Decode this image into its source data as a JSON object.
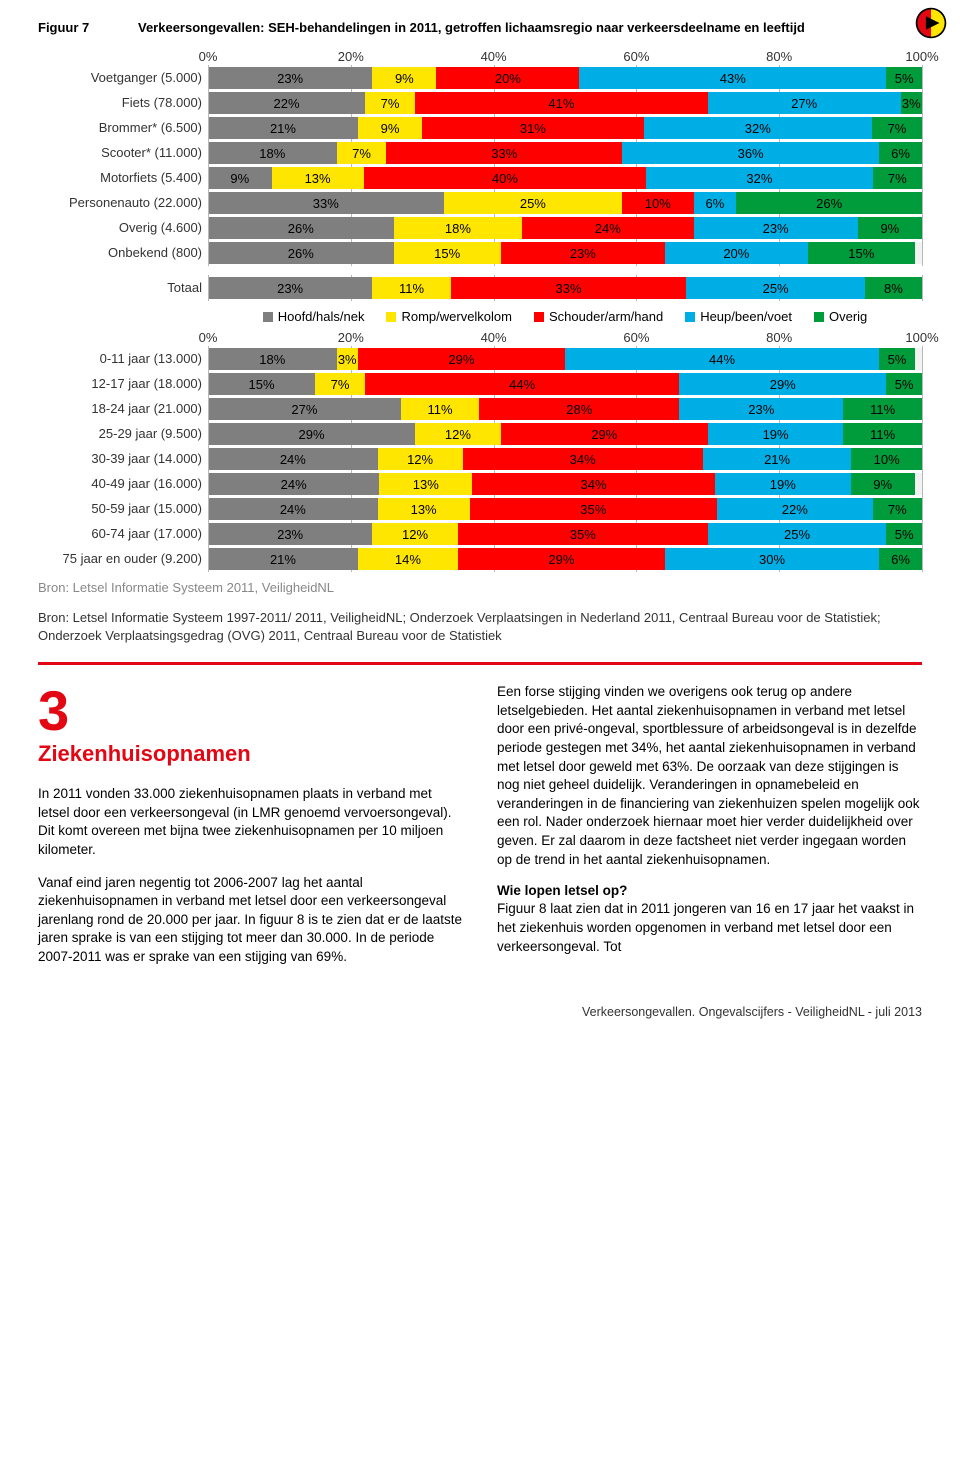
{
  "logo": {
    "outer": "#000000",
    "left_half": "#e30613",
    "right_half": "#ffe600"
  },
  "figure": {
    "label": "Figuur 7",
    "title": "Verkeersongevallen: SEH-behandelingen in 2011, getroffen lichaamsregio naar verkeersdeelname en leeftijd"
  },
  "colors": {
    "hoofd": "#7f7f7f",
    "romp": "#ffe600",
    "schouder": "#ff0000",
    "heup": "#00aee6",
    "overig": "#009b3a",
    "bgbar": "#f2f2f2",
    "grid": "#b8b8b8"
  },
  "legend": [
    {
      "label": "Hoofd/hals/nek",
      "color": "#7f7f7f"
    },
    {
      "label": "Romp/wervelkolom",
      "color": "#ffe600"
    },
    {
      "label": "Schouder/arm/hand",
      "color": "#ff0000"
    },
    {
      "label": "Heup/been/voet",
      "color": "#00aee6"
    },
    {
      "label": "Overig",
      "color": "#009b3a"
    }
  ],
  "axis": {
    "ticks": [
      "0%",
      "20%",
      "40%",
      "60%",
      "80%",
      "100%"
    ],
    "positions": [
      0,
      20,
      40,
      60,
      80,
      100
    ]
  },
  "chart1": [
    {
      "label": "Voetganger (5.000)",
      "segs": [
        23,
        9,
        20,
        43,
        5
      ]
    },
    {
      "label": "Fiets (78.000)",
      "segs": [
        22,
        7,
        41,
        27,
        3
      ]
    },
    {
      "label": "Brommer* (6.500)",
      "segs": [
        21,
        9,
        31,
        32,
        7
      ]
    },
    {
      "label": "Scooter* (11.000)",
      "segs": [
        18,
        7,
        33,
        36,
        6
      ]
    },
    {
      "label": "Motorfiets (5.400)",
      "segs": [
        9,
        13,
        40,
        32,
        7
      ]
    },
    {
      "label": "Personenauto (22.000)",
      "segs": [
        33,
        25,
        10,
        6,
        26
      ]
    },
    {
      "label": "Overig (4.600)",
      "segs": [
        26,
        18,
        24,
        23,
        9
      ]
    },
    {
      "label": "Onbekend (800)",
      "segs": [
        26,
        15,
        23,
        20,
        15
      ]
    }
  ],
  "totaal": {
    "label": "Totaal",
    "segs": [
      23,
      11,
      33,
      25,
      8
    ]
  },
  "chart2": [
    {
      "label": "0-11 jaar (13.000)",
      "segs": [
        18,
        3,
        29,
        44,
        5
      ]
    },
    {
      "label": "12-17 jaar (18.000)",
      "segs": [
        15,
        7,
        44,
        29,
        5
      ]
    },
    {
      "label": "18-24 jaar (21.000)",
      "segs": [
        27,
        11,
        28,
        23,
        11
      ]
    },
    {
      "label": "25-29 jaar (9.500)",
      "segs": [
        29,
        12,
        29,
        19,
        11
      ]
    },
    {
      "label": "30-39 jaar (14.000)",
      "segs": [
        24,
        12,
        34,
        21,
        10
      ]
    },
    {
      "label": "40-49 jaar (16.000)",
      "segs": [
        24,
        13,
        34,
        19,
        9
      ]
    },
    {
      "label": "50-59 jaar (15.000)",
      "segs": [
        24,
        13,
        35,
        22,
        7
      ]
    },
    {
      "label": "60-74 jaar (17.000)",
      "segs": [
        23,
        12,
        35,
        25,
        5
      ]
    },
    {
      "label": "75 jaar en ouder (9.200)",
      "segs": [
        21,
        14,
        29,
        30,
        6
      ]
    }
  ],
  "source_note": "Bron: Letsel Informatie Systeem 2011, VeiligheidNL",
  "source_para": "Bron: Letsel Informatie Systeem 1997-2011/ 2011, VeiligheidNL; Onderzoek Verplaatsingen in Nederland 2011, Centraal Bureau voor de Statistiek; Onderzoek Verplaatsingsgedrag (OVG) 2011, Centraal Bureau voor de Statistiek",
  "section": {
    "num": "3",
    "heading": "Ziekenhuisopnamen",
    "left_p1": "In 2011 vonden 33.000 ziekenhuisopnamen plaats in verband met letsel door een verkeersongeval (in LMR genoemd vervoersongeval). Dit komt overeen met bijna twee ziekenhuisopnamen per 10 miljoen kilometer.",
    "left_p2": "Vanaf eind jaren negentig tot 2006-2007 lag het aantal ziekenhuisopnamen in verband met letsel door een verkeersongeval jarenlang rond de 20.000 per jaar. In figuur 8 is te zien dat er de laatste jaren sprake is van een stijging tot meer dan 30.000. In de periode 2007-2011 was er sprake van een stijging van 69%.",
    "right_p1": "Een forse stijging vinden we overigens ook terug op andere letselgebieden. Het aantal ziekenhuisopnamen in verband met letsel door een privé-ongeval, sportblessure of arbeidsongeval is in dezelfde periode gestegen met 34%, het aantal ziekenhuisopnamen in verband met letsel door geweld met 63%. De oorzaak van deze stijgingen is nog niet geheel duidelijk. Veranderingen in opnamebeleid en veranderingen in de financiering van ziekenhuizen spelen mogelijk ook een rol. Nader onderzoek hiernaar moet hier verder duidelijkheid over geven. Er zal daarom in deze factsheet niet verder ingegaan worden op de trend in het aantal ziekenhuisopnamen.",
    "right_h": "Wie lopen letsel op?",
    "right_p2": "Figuur 8 laat zien dat in 2011 jongeren van 16 en 17 jaar het vaakst in het ziekenhuis worden opgenomen in verband met letsel door een verkeersongeval. Tot"
  },
  "footer": "Verkeersongevallen. Ongevalscijfers - VeiligheidNL - juli 2013"
}
